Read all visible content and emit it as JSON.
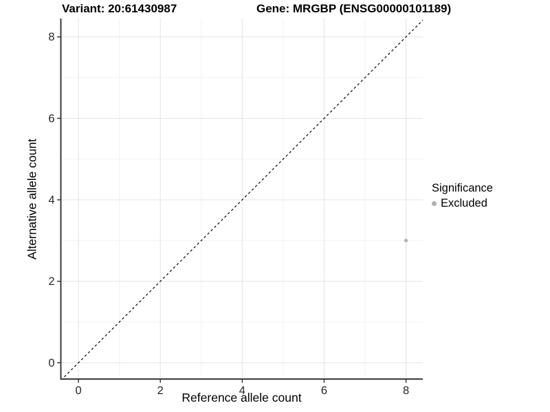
{
  "titles": {
    "variant": "Variant: 20:61430987",
    "gene": "Gene: MRGBP (ENSG00000101189)"
  },
  "chart_data": {
    "type": "scatter",
    "xlabel": "Reference allele count",
    "ylabel": "Alternative allele count",
    "xlim": [
      -0.43,
      8.41
    ],
    "ylim": [
      -0.4,
      8.45
    ],
    "xticks": [
      0,
      2,
      4,
      6,
      8
    ],
    "yticks": [
      0,
      2,
      4,
      6,
      8
    ],
    "xminor": [
      1,
      3,
      5,
      7
    ],
    "yminor": [
      1,
      3,
      5,
      7
    ],
    "grid": true,
    "identity_line": {
      "style": "dashed",
      "slope": 1,
      "intercept": 0,
      "color": "#000000"
    },
    "series": [
      {
        "name": "Excluded",
        "color": "#b0b0b0",
        "points": [
          {
            "x": 8,
            "y": 3
          }
        ]
      }
    ],
    "legend": {
      "title": "Significance",
      "position": "right",
      "entries": [
        {
          "label": "Excluded",
          "color": "#b0b0b0"
        }
      ]
    }
  },
  "colors": {
    "background": "#ffffff",
    "axis": "#3a3a3a",
    "tick_label": "#262626",
    "grid_major": "#e3e3e3",
    "grid_minor": "#f1f1f1"
  }
}
